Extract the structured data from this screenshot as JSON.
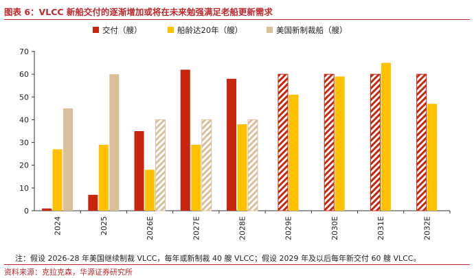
{
  "title": "图表 6：VLCC 新船交付的逐渐增加或将在未来勉强满足老船更新需求",
  "note": "注：假设 2026-28 年美国继续制裁 VLCC，每年或新制裁 40 艘 VLCC；假设 2029 年及以后每年新交付 60 艘 VLCC。",
  "source": "资料来源：克拉克森，华源证券研究所",
  "colors": {
    "red": "#c8250f",
    "yellow": "#ffc000",
    "tan": "#d9bf9a",
    "accent": "#c0282c"
  },
  "chart_data": {
    "type": "bar",
    "categories": [
      "2024",
      "2025",
      "2026E",
      "2027E",
      "2028E",
      "2029E",
      "2030E",
      "2031E",
      "2032E"
    ],
    "ylim": [
      0,
      70
    ],
    "yticks": [
      0,
      10,
      20,
      30,
      40,
      50,
      60,
      70
    ],
    "legend_position": "top",
    "series": [
      {
        "name": "交付（艘）",
        "color": "#c8250f",
        "values": [
          1,
          7,
          35,
          62,
          58,
          60,
          60,
          60,
          60
        ],
        "hatched": [
          false,
          false,
          false,
          false,
          false,
          true,
          true,
          true,
          true
        ]
      },
      {
        "name": "船龄达20年（艘）",
        "color": "#ffc000",
        "values": [
          27,
          29,
          18,
          29,
          38,
          51,
          59,
          65,
          47
        ],
        "hatched": [
          false,
          false,
          false,
          false,
          false,
          false,
          false,
          false,
          false
        ]
      },
      {
        "name": "美国新制裁船（艘）",
        "color": "#d9bf9a",
        "values": [
          45,
          60,
          40,
          40,
          40,
          null,
          null,
          null,
          null
        ],
        "hatched": [
          false,
          false,
          true,
          true,
          true,
          false,
          false,
          false,
          false
        ]
      }
    ]
  }
}
